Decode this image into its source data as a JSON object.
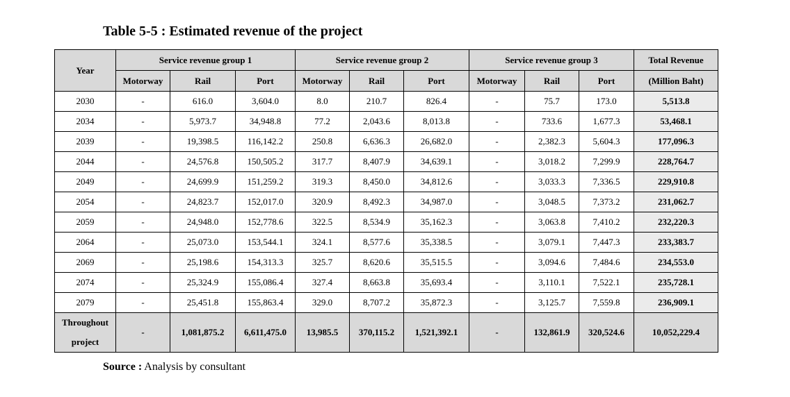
{
  "title": "Table 5-5 : Estimated revenue of the project",
  "header": {
    "year": "Year",
    "group1": "Service revenue group 1",
    "group2": "Service revenue group 2",
    "group3": "Service revenue group 3",
    "total_line1": "Total Revenue",
    "total_line2": "(Million Baht)",
    "sub": [
      "Motorway",
      "Rail",
      "Port",
      "Motorway",
      "Rail",
      "Port",
      "Motorway",
      "Rail",
      "Port"
    ]
  },
  "rows": [
    {
      "year": "2030",
      "cells": [
        "-",
        "616.0",
        "3,604.0",
        "8.0",
        "210.7",
        "826.4",
        "-",
        "75.7",
        "173.0"
      ],
      "total": "5,513.8"
    },
    {
      "year": "2034",
      "cells": [
        "-",
        "5,973.7",
        "34,948.8",
        "77.2",
        "2,043.6",
        "8,013.8",
        "-",
        "733.6",
        "1,677.3"
      ],
      "total": "53,468.1"
    },
    {
      "year": "2039",
      "cells": [
        "-",
        "19,398.5",
        "116,142.2",
        "250.8",
        "6,636.3",
        "26,682.0",
        "-",
        "2,382.3",
        "5,604.3"
      ],
      "total": "177,096.3"
    },
    {
      "year": "2044",
      "cells": [
        "-",
        "24,576.8",
        "150,505.2",
        "317.7",
        "8,407.9",
        "34,639.1",
        "-",
        "3,018.2",
        "7,299.9"
      ],
      "total": "228,764.7"
    },
    {
      "year": "2049",
      "cells": [
        "-",
        "24,699.9",
        "151,259.2",
        "319.3",
        "8,450.0",
        "34,812.6",
        "-",
        "3,033.3",
        "7,336.5"
      ],
      "total": "229,910.8"
    },
    {
      "year": "2054",
      "cells": [
        "-",
        "24,823.7",
        "152,017.0",
        "320.9",
        "8,492.3",
        "34,987.0",
        "-",
        "3,048.5",
        "7,373.2"
      ],
      "total": "231,062.7"
    },
    {
      "year": "2059",
      "cells": [
        "-",
        "24,948.0",
        "152,778.6",
        "322.5",
        "8,534.9",
        "35,162.3",
        "-",
        "3,063.8",
        "7,410.2"
      ],
      "total": "232,220.3"
    },
    {
      "year": "2064",
      "cells": [
        "-",
        "25,073.0",
        "153,544.1",
        "324.1",
        "8,577.6",
        "35,338.5",
        "-",
        "3,079.1",
        "7,447.3"
      ],
      "total": "233,383.7"
    },
    {
      "year": "2069",
      "cells": [
        "-",
        "25,198.6",
        "154,313.3",
        "325.7",
        "8,620.6",
        "35,515.5",
        "-",
        "3,094.6",
        "7,484.6"
      ],
      "total": "234,553.0"
    },
    {
      "year": "2074",
      "cells": [
        "-",
        "25,324.9",
        "155,086.4",
        "327.4",
        "8,663.8",
        "35,693.4",
        "-",
        "3,110.1",
        "7,522.1"
      ],
      "total": "235,728.1"
    },
    {
      "year": "2079",
      "cells": [
        "-",
        "25,451.8",
        "155,863.4",
        "329.0",
        "8,707.2",
        "35,872.3",
        "-",
        "3,125.7",
        "7,559.8"
      ],
      "total": "236,909.1"
    }
  ],
  "footer": {
    "label_line1": "Throughout",
    "label_line2": "project",
    "cells": [
      "-",
      "1,081,875.2",
      "6,611,475.0",
      "13,985.5",
      "370,115.2",
      "1,521,392.1",
      "-",
      "132,861.9",
      "320,524.6"
    ],
    "total": "10,052,229.4"
  },
  "source": {
    "label": "Source :",
    "text": " Analysis by consultant"
  }
}
